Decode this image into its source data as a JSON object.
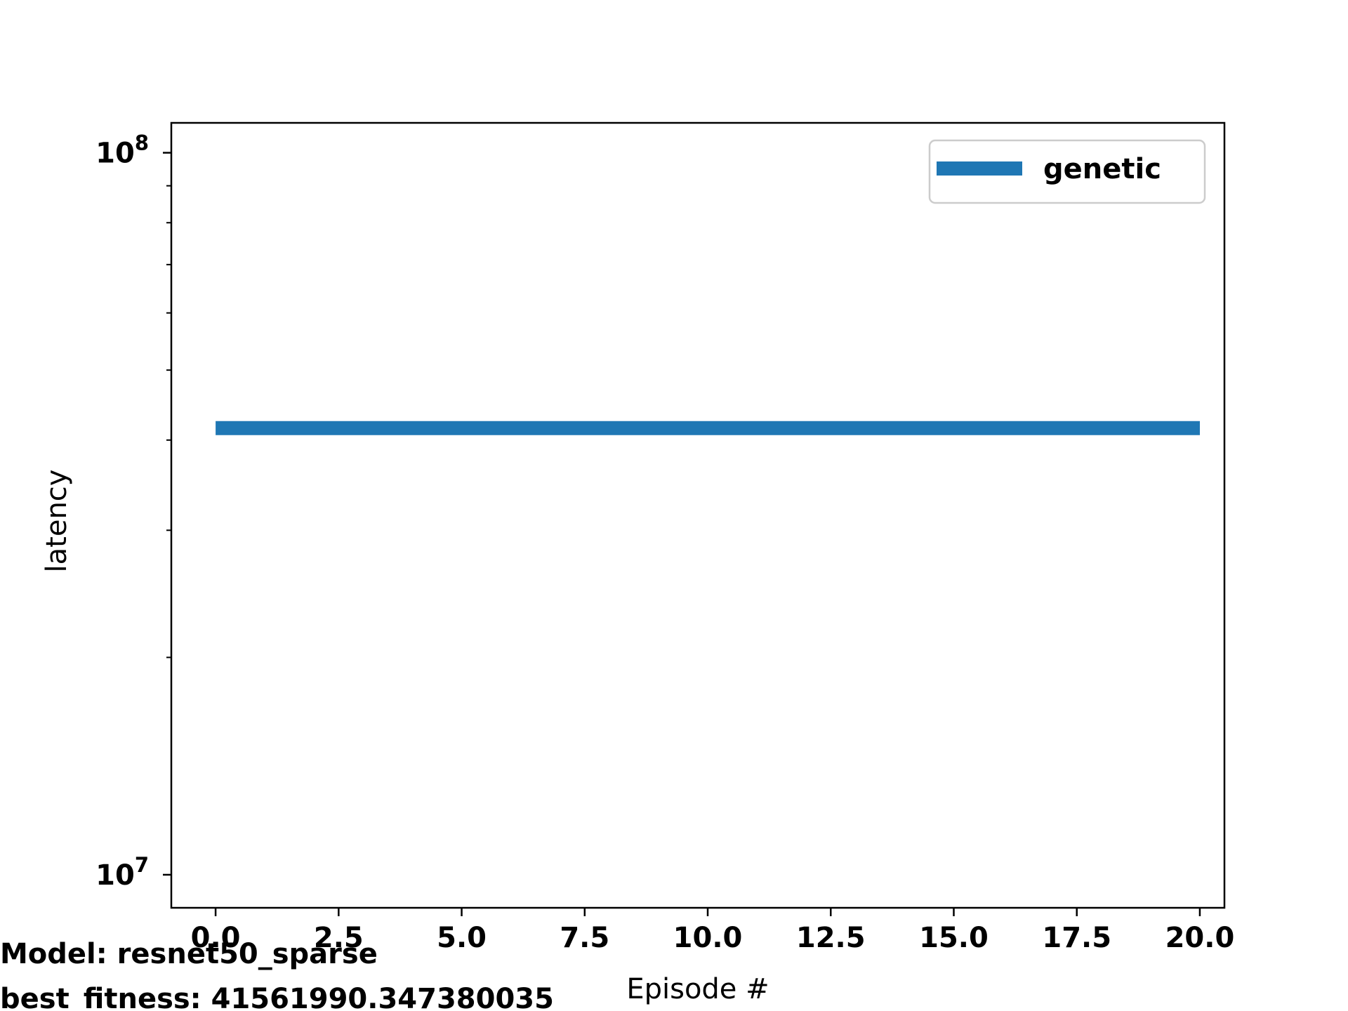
{
  "chart_data": {
    "type": "line",
    "xlabel": "Episode #",
    "ylabel": "latency",
    "yscale": "log",
    "xlim": [
      -0.9,
      20.5
    ],
    "ylim": [
      9000000,
      110000000
    ],
    "x_ticks": [
      0.0,
      2.5,
      5.0,
      7.5,
      10.0,
      12.5,
      15.0,
      17.5,
      20.0
    ],
    "x_tick_labels": [
      "0.0",
      "2.5",
      "5.0",
      "7.5",
      "10.0",
      "12.5",
      "15.0",
      "17.5",
      "20.0"
    ],
    "y_major_ticks": [
      10000000,
      100000000
    ],
    "y_tick_labels": [
      {
        "base": "10",
        "exp": "7"
      },
      {
        "base": "10",
        "exp": "8"
      }
    ],
    "y_minor_ticks": [
      20000000,
      30000000,
      40000000,
      50000000,
      60000000,
      70000000,
      80000000,
      90000000
    ],
    "grid": false,
    "legend_position": "top-right",
    "series": [
      {
        "name": "genetic",
        "color": "#1f77b4",
        "x": [
          0,
          1,
          2,
          3,
          4,
          5,
          6,
          7,
          8,
          9,
          10,
          11,
          12,
          13,
          14,
          15,
          16,
          17,
          18,
          19,
          20
        ],
        "y": [
          41561990.347380035,
          41561990.347380035,
          41561990.347380035,
          41561990.347380035,
          41561990.347380035,
          41561990.347380035,
          41561990.347380035,
          41561990.347380035,
          41561990.347380035,
          41561990.347380035,
          41561990.347380035,
          41561990.347380035,
          41561990.347380035,
          41561990.347380035,
          41561990.347380035,
          41561990.347380035,
          41561990.347380035,
          41561990.347380035,
          41561990.347380035,
          41561990.347380035,
          41561990.347380035
        ]
      }
    ]
  },
  "footer": {
    "model_line": "Model: resnet50_sparse",
    "fitness_line": "best_fitness: 41561990.347380035"
  }
}
